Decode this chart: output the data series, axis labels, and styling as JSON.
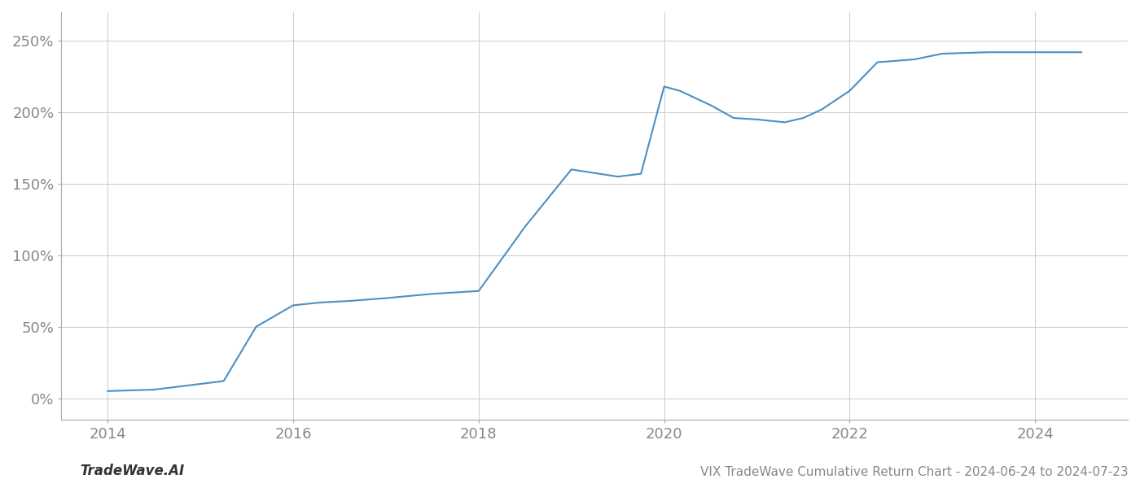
{
  "title": "VIX TradeWave Cumulative Return Chart - 2024-06-24 to 2024-07-23",
  "watermark": "TradeWave.AI",
  "line_color": "#4a90c4",
  "line_width": 1.5,
  "background_color": "#ffffff",
  "grid_color": "#cccccc",
  "x_values": [
    2014.0,
    2014.5,
    2015.0,
    2015.25,
    2015.6,
    2016.0,
    2016.3,
    2016.6,
    2017.0,
    2017.5,
    2018.0,
    2018.5,
    2019.0,
    2019.5,
    2019.75,
    2020.0,
    2020.17,
    2020.5,
    2020.75,
    2021.0,
    2021.3,
    2021.5,
    2021.7,
    2022.0,
    2022.3,
    2022.7,
    2023.0,
    2023.5,
    2024.0,
    2024.5
  ],
  "y_values": [
    5,
    6,
    10,
    12,
    50,
    65,
    67,
    68,
    70,
    73,
    75,
    120,
    160,
    155,
    157,
    218,
    215,
    205,
    196,
    195,
    193,
    196,
    202,
    215,
    235,
    237,
    241,
    242,
    242,
    242
  ],
  "xlim": [
    2013.5,
    2025.0
  ],
  "ylim": [
    -15,
    270
  ],
  "yticks": [
    0,
    50,
    100,
    150,
    200,
    250
  ],
  "ytick_labels": [
    "0%",
    "50%",
    "100%",
    "150%",
    "200%",
    "250%"
  ],
  "xticks": [
    2014,
    2016,
    2018,
    2020,
    2022,
    2024
  ],
  "xtick_labels": [
    "2014",
    "2016",
    "2018",
    "2020",
    "2022",
    "2024"
  ],
  "title_fontsize": 11,
  "watermark_fontsize": 12,
  "tick_fontsize": 13,
  "title_color": "#888888",
  "watermark_color": "#333333",
  "tick_color": "#888888",
  "spine_color": "#aaaaaa"
}
